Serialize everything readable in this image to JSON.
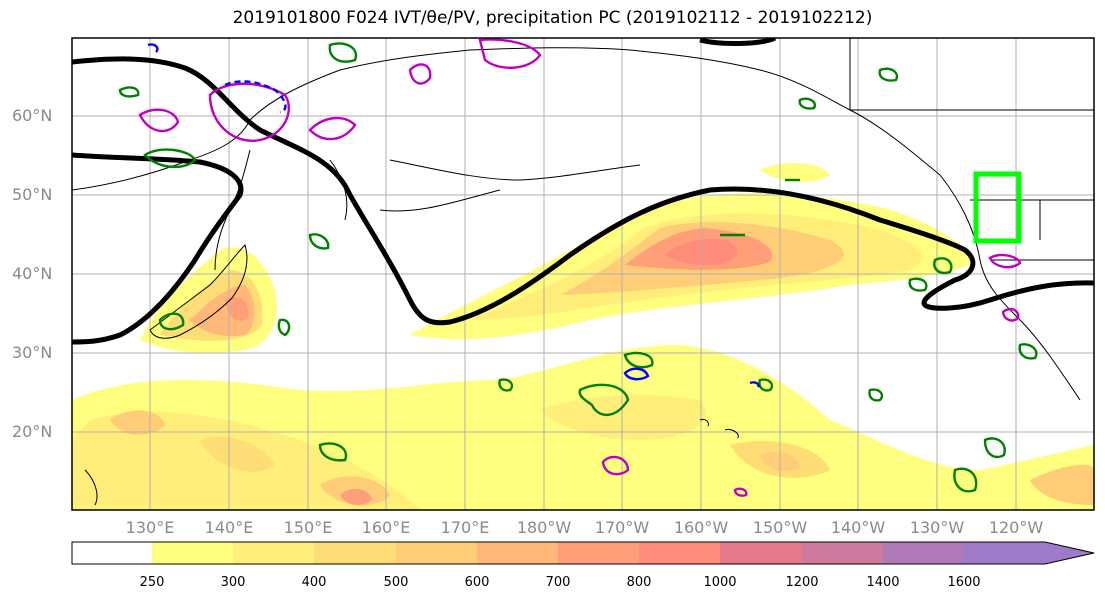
{
  "title": "2019101800 F024 IVT/θe/PV, precipitation PC (2019102112 - 2019102212)",
  "map": {
    "projection": "equirectangular",
    "lon_range": [
      120,
      250
    ],
    "lat_range": [
      10,
      70
    ],
    "lat_ticks": [
      {
        "label": "20°N"
      },
      {
        "label": "30°N"
      },
      {
        "label": "40°N"
      },
      {
        "label": "50°N"
      },
      {
        "label": "60°N"
      }
    ],
    "lon_ticks": [
      {
        "label": "130°E"
      },
      {
        "label": "140°E"
      },
      {
        "label": "150°E"
      },
      {
        "label": "160°E"
      },
      {
        "label": "170°E"
      },
      {
        "label": "180°W"
      },
      {
        "label": "170°W"
      },
      {
        "label": "160°W"
      },
      {
        "label": "150°W"
      },
      {
        "label": "140°W"
      },
      {
        "label": "130°W"
      },
      {
        "label": "120°W"
      }
    ],
    "grid": true,
    "highlight_box_color": "#00ff00",
    "contour_colors": {
      "theta_e_black": "#000000",
      "green": "#008000",
      "magenta": "#c000c0",
      "blue": "#0000ff"
    }
  },
  "colorbar": {
    "levels": [
      "250",
      "300",
      "400",
      "500",
      "600",
      "700",
      "800",
      "1000",
      "1200",
      "1400",
      "1600"
    ],
    "colors": [
      "#ffffff",
      "#ffff7f",
      "#ffee7a",
      "#ffdd76",
      "#ffcc78",
      "#ffb77a",
      "#ff9f7a",
      "#ff8c7a",
      "#e57a8a",
      "#cc7a9e",
      "#b07ab8",
      "#9e7ac8"
    ],
    "extend": "max"
  }
}
